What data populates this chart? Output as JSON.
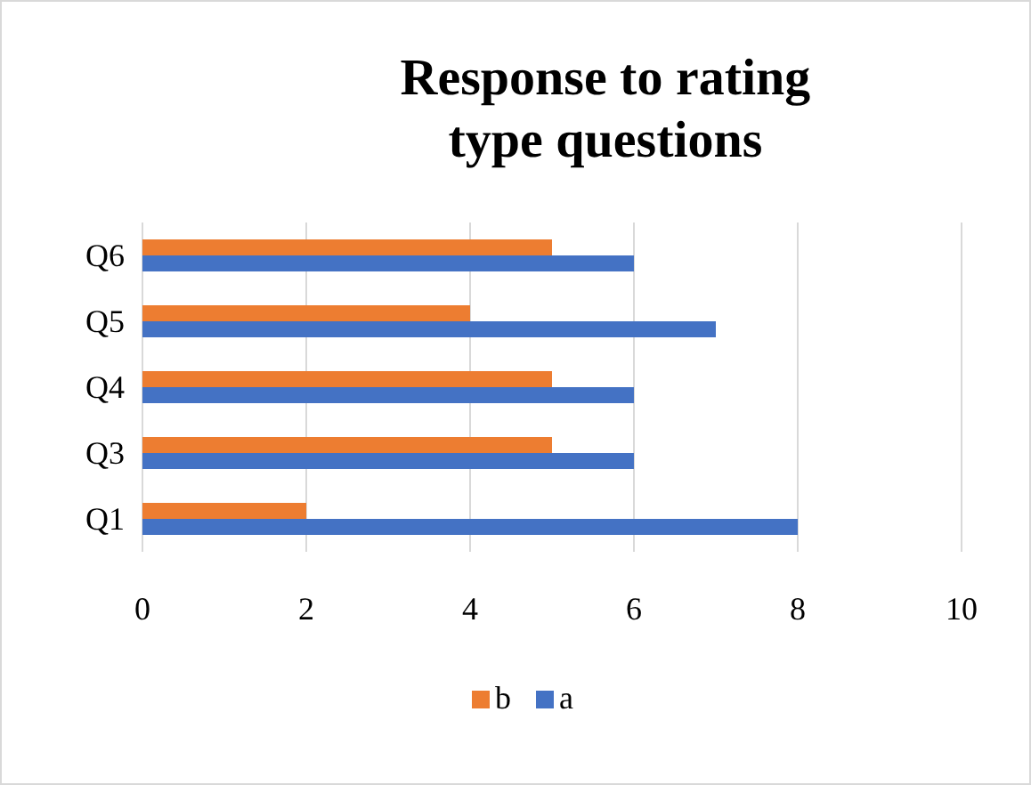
{
  "chart_data": {
    "type": "bar",
    "orientation": "horizontal",
    "title": "Response to rating type questions",
    "categories": [
      "Q6",
      "Q5",
      "Q4",
      "Q3",
      "Q1"
    ],
    "series": [
      {
        "name": "b",
        "color": "#ed7d31",
        "values": [
          5,
          4,
          5,
          5,
          2
        ]
      },
      {
        "name": "a",
        "color": "#4472c4",
        "values": [
          6,
          7,
          6,
          6,
          8
        ]
      }
    ],
    "xlim": [
      0,
      10
    ],
    "xticks": [
      0,
      2,
      4,
      6,
      8,
      10
    ],
    "grid": "x",
    "legend": "bottom"
  }
}
